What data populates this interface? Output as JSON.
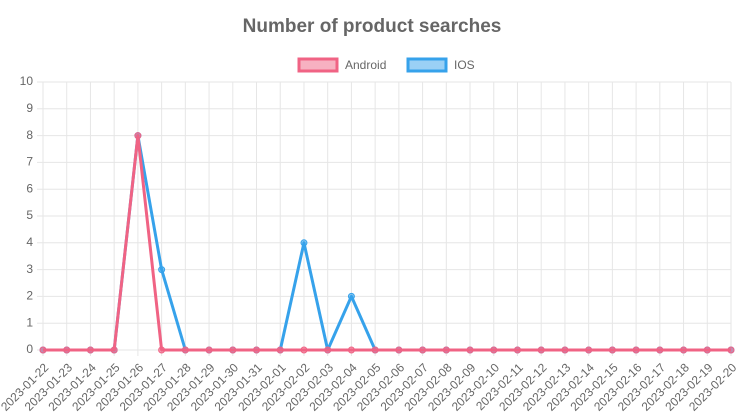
{
  "chart_data": {
    "type": "line",
    "title": "Number of product searches",
    "categories": [
      "2023-01-22",
      "2023-01-23",
      "2023-01-24",
      "2023-01-25",
      "2023-01-26",
      "2023-01-27",
      "2023-01-28",
      "2023-01-29",
      "2023-01-30",
      "2023-01-31",
      "2023-02-01",
      "2023-02-02",
      "2023-02-03",
      "2023-02-04",
      "2023-02-05",
      "2023-02-06",
      "2023-02-07",
      "2023-02-08",
      "2023-02-09",
      "2023-02-10",
      "2023-02-11",
      "2023-02-12",
      "2023-02-13",
      "2023-02-14",
      "2023-02-15",
      "2023-02-16",
      "2023-02-17",
      "2023-02-18",
      "2023-02-19",
      "2023-02-20"
    ],
    "series": [
      {
        "name": "Android",
        "color": "#f06384",
        "values": [
          0,
          0,
          0,
          0,
          8,
          0,
          0,
          0,
          0,
          0,
          0,
          0,
          0,
          0,
          0,
          0,
          0,
          0,
          0,
          0,
          0,
          0,
          0,
          0,
          0,
          0,
          0,
          0,
          0,
          0
        ]
      },
      {
        "name": "IOS",
        "color": "#36a2eb",
        "values": [
          0,
          0,
          0,
          0,
          8,
          3,
          0,
          0,
          0,
          0,
          0,
          4,
          0,
          2,
          0,
          0,
          0,
          0,
          0,
          0,
          0,
          0,
          0,
          0,
          0,
          0,
          0,
          0,
          0,
          0
        ]
      }
    ],
    "ylim": [
      0,
      10
    ],
    "yticks": [
      0,
      1,
      2,
      3,
      4,
      5,
      6,
      7,
      8,
      9,
      10
    ],
    "grid": true,
    "legend": "top"
  }
}
